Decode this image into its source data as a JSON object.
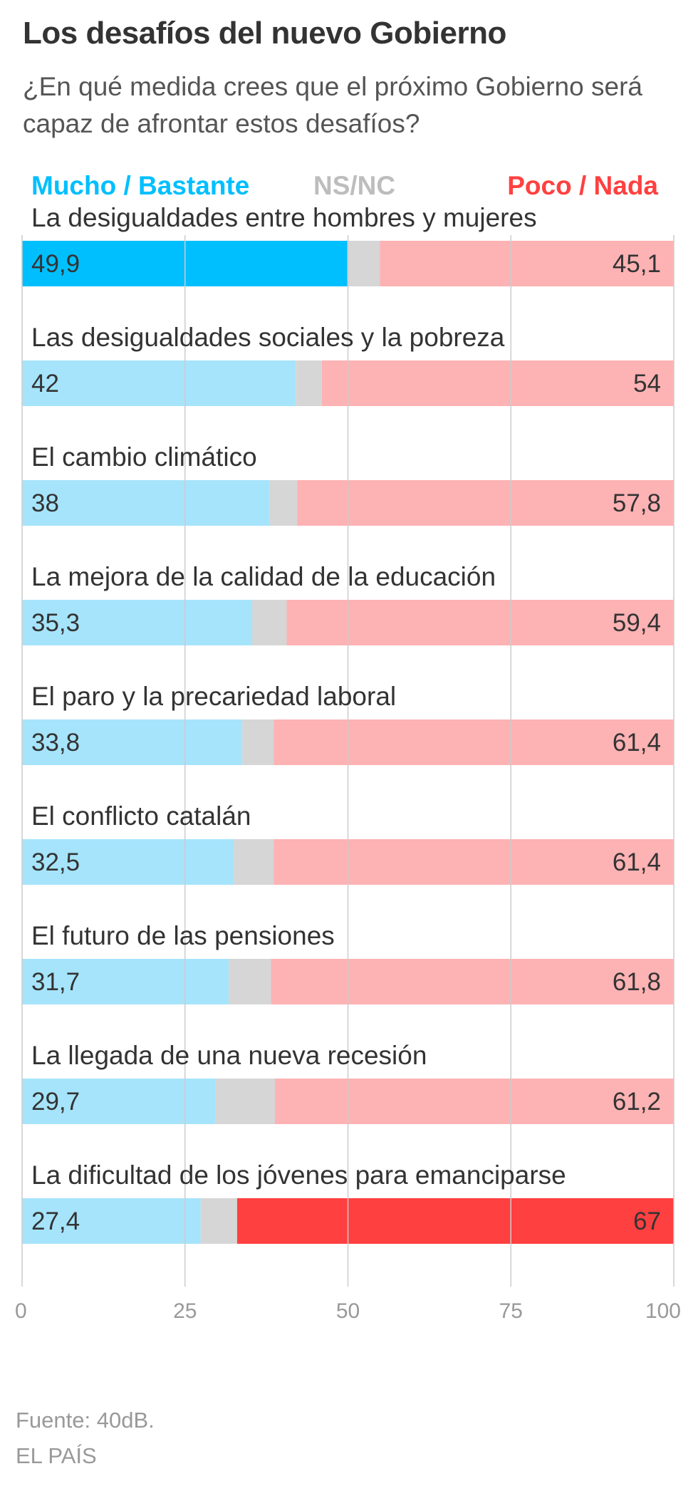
{
  "chart_data": {
    "type": "bar",
    "orientation": "horizontal",
    "stacked": true,
    "title": "Los desafíos del nuevo Gobierno",
    "subtitle": "¿En qué medida crees que el próximo Gobierno será capaz de afrontar estos desafíos?",
    "legend": [
      {
        "name": "Mucho / Bastante",
        "color": "#00BFFF"
      },
      {
        "name": "NS/NC",
        "color": "#BDBDBD"
      },
      {
        "name": "Poco / Nada",
        "color": "#FF4040"
      }
    ],
    "categories": [
      "La desigualdades entre hombres y mujeres",
      "Las desigualdades sociales y la pobreza",
      "El cambio climático",
      "La mejora de la calidad de la educación",
      "El paro y la precariedad laboral",
      "El conflicto catalán",
      "El futuro de las pensiones",
      "La llegada de una nueva recesión",
      "La dificultad de los jóvenes para emanciparse"
    ],
    "series": [
      {
        "name": "Mucho / Bastante",
        "values": [
          49.9,
          42,
          38,
          35.3,
          33.8,
          32.5,
          31.7,
          29.7,
          27.4
        ],
        "labels": [
          "49,9",
          "42",
          "38",
          "35,3",
          "33,8",
          "32,5",
          "31,7",
          "29,7",
          "27,4"
        ]
      },
      {
        "name": "NS/NC",
        "values": [
          5.0,
          4,
          4.2,
          5.3,
          4.8,
          6.1,
          6.5,
          9.1,
          5.6
        ]
      },
      {
        "name": "Poco / Nada",
        "values": [
          45.1,
          54,
          57.8,
          59.4,
          61.4,
          61.4,
          61.8,
          61.2,
          67
        ],
        "labels": [
          "45,1",
          "54",
          "57,8",
          "59,4",
          "61,4",
          "61,4",
          "61,8",
          "61,2",
          "67"
        ]
      }
    ],
    "highlight": {
      "mucho_index": 0,
      "poco_index": 8
    },
    "colors": {
      "mucho_light": "#A6E4FB",
      "mucho_strong": "#00BFFF",
      "nsnc": "#D6D6D6",
      "poco_light": "#FDB2B4",
      "poco_strong": "#FF4040",
      "grid": "#CCCCCC"
    },
    "xlim": [
      0,
      100
    ],
    "xticks": [
      0,
      25,
      50,
      75,
      100
    ],
    "grid": true
  },
  "footer": {
    "source": "Fuente: 40dB.",
    "brand": "EL PAÍS"
  }
}
